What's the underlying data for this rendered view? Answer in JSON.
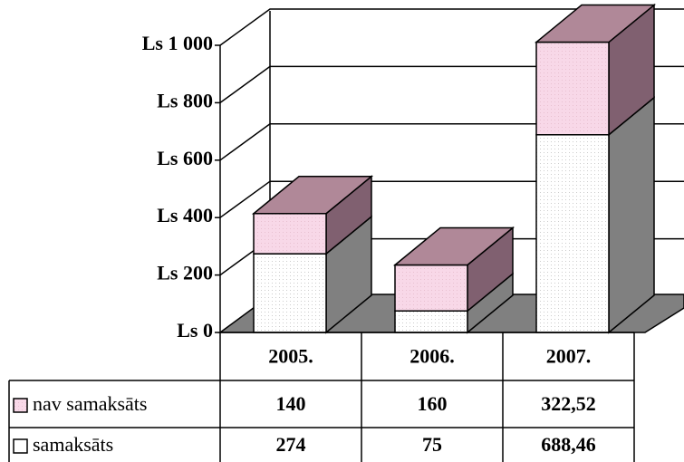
{
  "chart_data": {
    "type": "bar",
    "stacked": true,
    "categories": [
      "2005.",
      "2006.",
      "2007."
    ],
    "series": [
      {
        "name": "samaksāts",
        "color": "#ffffff",
        "values": [
          274,
          75,
          688.46
        ],
        "value_labels": [
          "274",
          "75",
          "688,46"
        ]
      },
      {
        "name": "nav samaksāts",
        "color": "#f8d8e8",
        "values": [
          140,
          160,
          322.52
        ],
        "value_labels": [
          "140",
          "160",
          "322,52"
        ]
      }
    ],
    "ylim": [
      0,
      1000
    ],
    "yticks": [
      {
        "value": 0,
        "label": "Ls 0"
      },
      {
        "value": 200,
        "label": "Ls 200"
      },
      {
        "value": 400,
        "label": "Ls 400"
      },
      {
        "value": 600,
        "label": "Ls 600"
      },
      {
        "value": 800,
        "label": "Ls 800"
      },
      {
        "value": 1000,
        "label": "Ls 1 000"
      }
    ],
    "grid": true
  }
}
